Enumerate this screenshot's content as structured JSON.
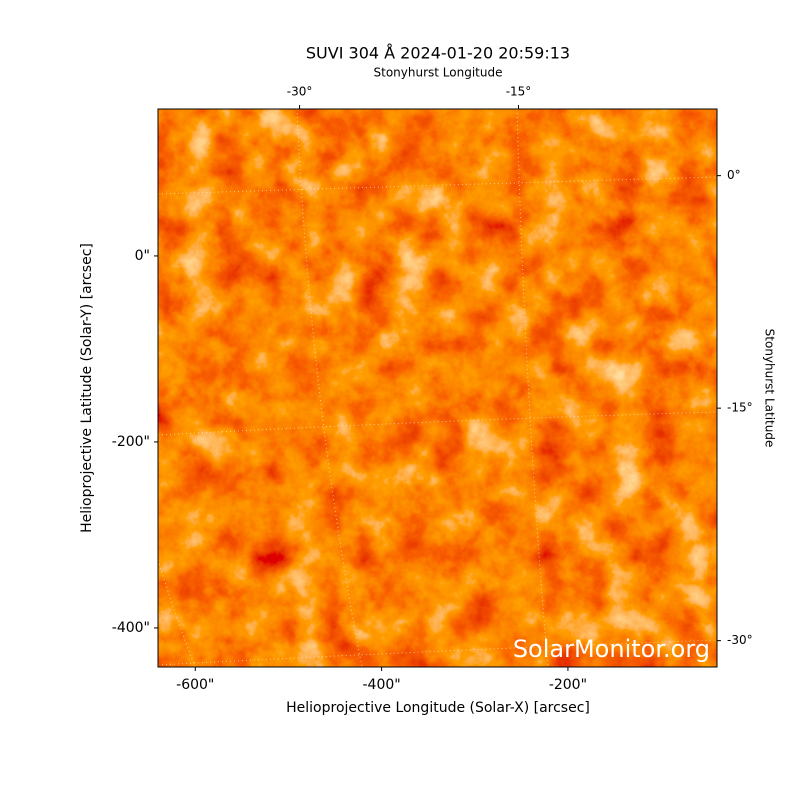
{
  "chart_data": {
    "type": "image",
    "title": "SUVI 304 Å 2024-01-20 20:59:13",
    "xlabel": "Helioprojective Longitude (Solar-X) [arcsec]",
    "ylabel": "Helioprojective Latitude (Solar-Y) [arcsec]",
    "x2label": "Stonyhurst Longitude",
    "y2label": "Stonyhurst Latitude",
    "watermark": "SolarMonitor.org",
    "xlim": [
      -640,
      -40
    ],
    "ylim": [
      -442,
      158
    ],
    "xticks": [
      {
        "value": -600,
        "label": "-600\""
      },
      {
        "value": -400,
        "label": "-400\""
      },
      {
        "value": -200,
        "label": "-200\""
      }
    ],
    "yticks": [
      {
        "value": 0,
        "label": "0\""
      },
      {
        "value": -200,
        "label": "-200\""
      },
      {
        "value": -400,
        "label": "-400\""
      }
    ],
    "x2lim": [
      -39.7,
      -1.4
    ],
    "x2ticks": [
      {
        "value": -30,
        "label": "-30°"
      },
      {
        "value": -15,
        "label": "-15°"
      }
    ],
    "y2lim": [
      -31.7,
      4.3
    ],
    "y2ticks": [
      {
        "value": 0,
        "label": "0°"
      },
      {
        "value": -15,
        "label": "-15°"
      },
      {
        "value": -30,
        "label": "-30°"
      }
    ]
  }
}
